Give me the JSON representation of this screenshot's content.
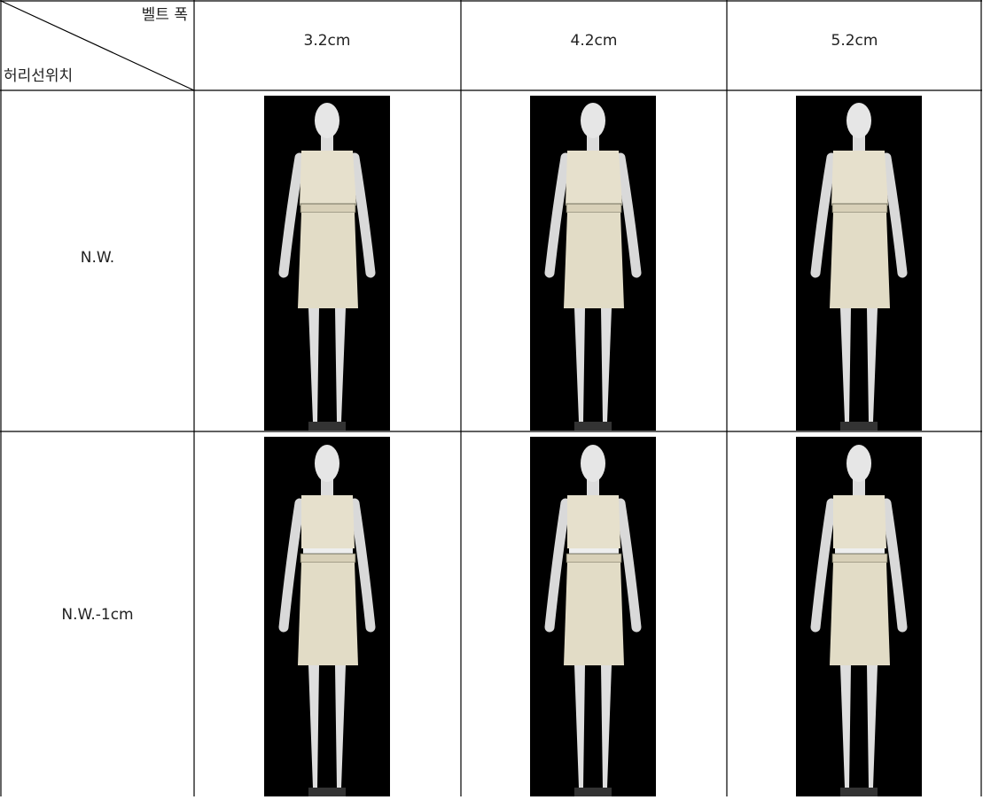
{
  "header": {
    "corner_top": "벨트 폭",
    "corner_bottom": "허리선위치",
    "columns": [
      "3.2cm",
      "4.2cm",
      "5.2cm"
    ]
  },
  "rows": [
    "N.W.",
    "N.W.-1cm"
  ]
}
